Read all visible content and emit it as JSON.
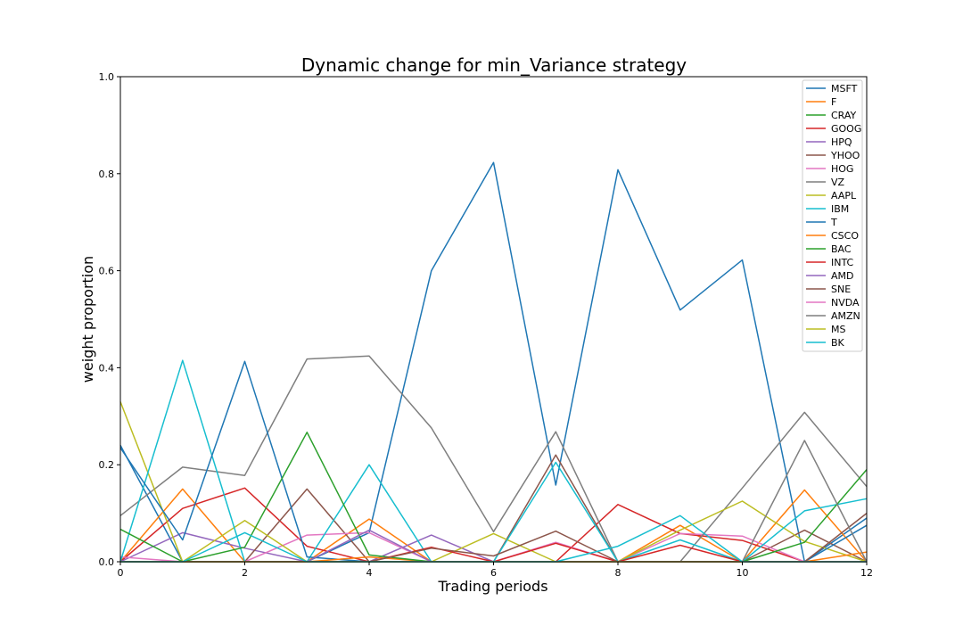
{
  "chart_data": {
    "type": "line",
    "title": "Dynamic change for min_Variance strategy",
    "xlabel": "Trading periods",
    "ylabel": "weight proportion",
    "xlim": [
      0,
      12
    ],
    "ylim": [
      0,
      1.0
    ],
    "x": [
      0,
      1,
      2,
      3,
      4,
      5,
      6,
      7,
      8,
      9,
      10,
      11,
      12
    ],
    "xticks": [
      "0",
      "2",
      "4",
      "6",
      "8",
      "10",
      "12"
    ],
    "yticks": [
      "0.0",
      "0.2",
      "0.4",
      "0.6",
      "0.8",
      "1.0"
    ],
    "grid": false,
    "legend_position": "top-right",
    "series": [
      {
        "name": "MSFT",
        "color": "#1f77b4",
        "values": [
          0.24,
          0.0,
          0.0,
          0.0,
          0.06,
          0.6,
          0.823,
          0.158,
          0.808,
          0.519,
          0.622,
          0.0,
          0.09
        ]
      },
      {
        "name": "F",
        "color": "#ff7f0e",
        "values": [
          0.0,
          0.15,
          0.0,
          0.0,
          0.088,
          0.0,
          0.0,
          0.0,
          0.0,
          0.075,
          0.0,
          0.148,
          0.0
        ]
      },
      {
        "name": "CRAY",
        "color": "#2ca02c",
        "values": [
          0.0,
          0.0,
          0.0,
          0.0,
          0.0,
          0.0,
          0.0,
          0.0,
          0.0,
          0.0,
          0.0,
          0.0,
          0.0
        ]
      },
      {
        "name": "GOOG",
        "color": "#d62728",
        "values": [
          0.0,
          0.11,
          0.152,
          0.032,
          0.0,
          0.0,
          0.0,
          0.0,
          0.118,
          0.058,
          0.044,
          0.0,
          0.0
        ]
      },
      {
        "name": "HPQ",
        "color": "#9467bd",
        "values": [
          0.0,
          0.06,
          0.028,
          0.0,
          0.0,
          0.055,
          0.0,
          0.0,
          0.0,
          0.0,
          0.0,
          0.0,
          0.0
        ]
      },
      {
        "name": "YHOO",
        "color": "#8c564b",
        "values": [
          0.0,
          0.0,
          0.0,
          0.15,
          0.0,
          0.0,
          0.0,
          0.22,
          0.0,
          0.0,
          0.0,
          0.065,
          0.0
        ]
      },
      {
        "name": "HOG",
        "color": "#e377c2",
        "values": [
          0.01,
          0.0,
          0.0,
          0.055,
          0.06,
          0.0,
          0.0,
          0.04,
          0.0,
          0.058,
          0.053,
          0.0,
          0.0
        ]
      },
      {
        "name": "VZ",
        "color": "#7f7f7f",
        "values": [
          0.095,
          0.195,
          0.178,
          0.418,
          0.424,
          0.276,
          0.062,
          0.268,
          0.0,
          0.0,
          0.152,
          0.308,
          0.155
        ]
      },
      {
        "name": "AAPL",
        "color": "#bcbd22",
        "values": [
          0.33,
          0.0,
          0.085,
          0.0,
          0.0,
          0.0,
          0.058,
          0.0,
          0.0,
          0.065,
          0.125,
          0.042,
          0.0
        ]
      },
      {
        "name": "IBM",
        "color": "#17becf",
        "values": [
          0.0,
          0.415,
          0.0,
          0.0,
          0.2,
          0.0,
          0.0,
          0.205,
          0.0,
          0.045,
          0.0,
          0.105,
          0.13
        ]
      },
      {
        "name": "T",
        "color": "#1f77b4",
        "values": [
          0.235,
          0.045,
          0.413,
          0.01,
          0.0,
          0.0,
          0.0,
          0.0,
          0.0,
          0.0,
          0.0,
          0.0,
          0.075
        ]
      },
      {
        "name": "CSCO",
        "color": "#ff7f0e",
        "values": [
          0.0,
          0.0,
          0.0,
          0.0,
          0.01,
          0.0,
          0.0,
          0.0,
          0.0,
          0.0,
          0.0,
          0.0,
          0.02
        ]
      },
      {
        "name": "BAC",
        "color": "#2ca02c",
        "values": [
          0.067,
          0.0,
          0.03,
          0.267,
          0.014,
          0.0,
          0.0,
          0.0,
          0.0,
          0.0,
          0.0,
          0.04,
          0.19
        ]
      },
      {
        "name": "INTC",
        "color": "#d62728",
        "values": [
          0.0,
          0.0,
          0.0,
          0.0,
          0.0,
          0.03,
          0.0,
          0.038,
          0.0,
          0.034,
          0.0,
          0.0,
          0.0
        ]
      },
      {
        "name": "AMD",
        "color": "#9467bd",
        "values": [
          0.0,
          0.0,
          0.0,
          0.0,
          0.065,
          0.0,
          0.0,
          0.0,
          0.0,
          0.0,
          0.0,
          0.0,
          0.0
        ]
      },
      {
        "name": "SNE",
        "color": "#8c564b",
        "values": [
          0.0,
          0.0,
          0.0,
          0.0,
          0.0,
          0.028,
          0.012,
          0.063,
          0.0,
          0.0,
          0.0,
          0.0,
          0.1
        ]
      },
      {
        "name": "NVDA",
        "color": "#e377c2",
        "values": [
          0.0,
          0.0,
          0.0,
          0.0,
          0.0,
          0.0,
          0.0,
          0.0,
          0.0,
          0.0,
          0.0,
          0.0,
          0.0
        ]
      },
      {
        "name": "AMZN",
        "color": "#7f7f7f",
        "values": [
          0.0,
          0.0,
          0.0,
          0.0,
          0.0,
          0.0,
          0.0,
          0.0,
          0.0,
          0.0,
          0.0,
          0.25,
          0.0
        ]
      },
      {
        "name": "MS",
        "color": "#bcbd22",
        "values": [
          0.0,
          0.0,
          0.0,
          0.0,
          0.0,
          0.0,
          0.0,
          0.0,
          0.0,
          0.0,
          0.0,
          0.0,
          0.0
        ]
      },
      {
        "name": "BK",
        "color": "#17becf",
        "values": [
          0.0,
          0.0,
          0.06,
          0.0,
          0.0,
          0.0,
          0.0,
          0.0,
          0.032,
          0.095,
          0.0,
          0.0,
          0.0
        ]
      }
    ]
  }
}
